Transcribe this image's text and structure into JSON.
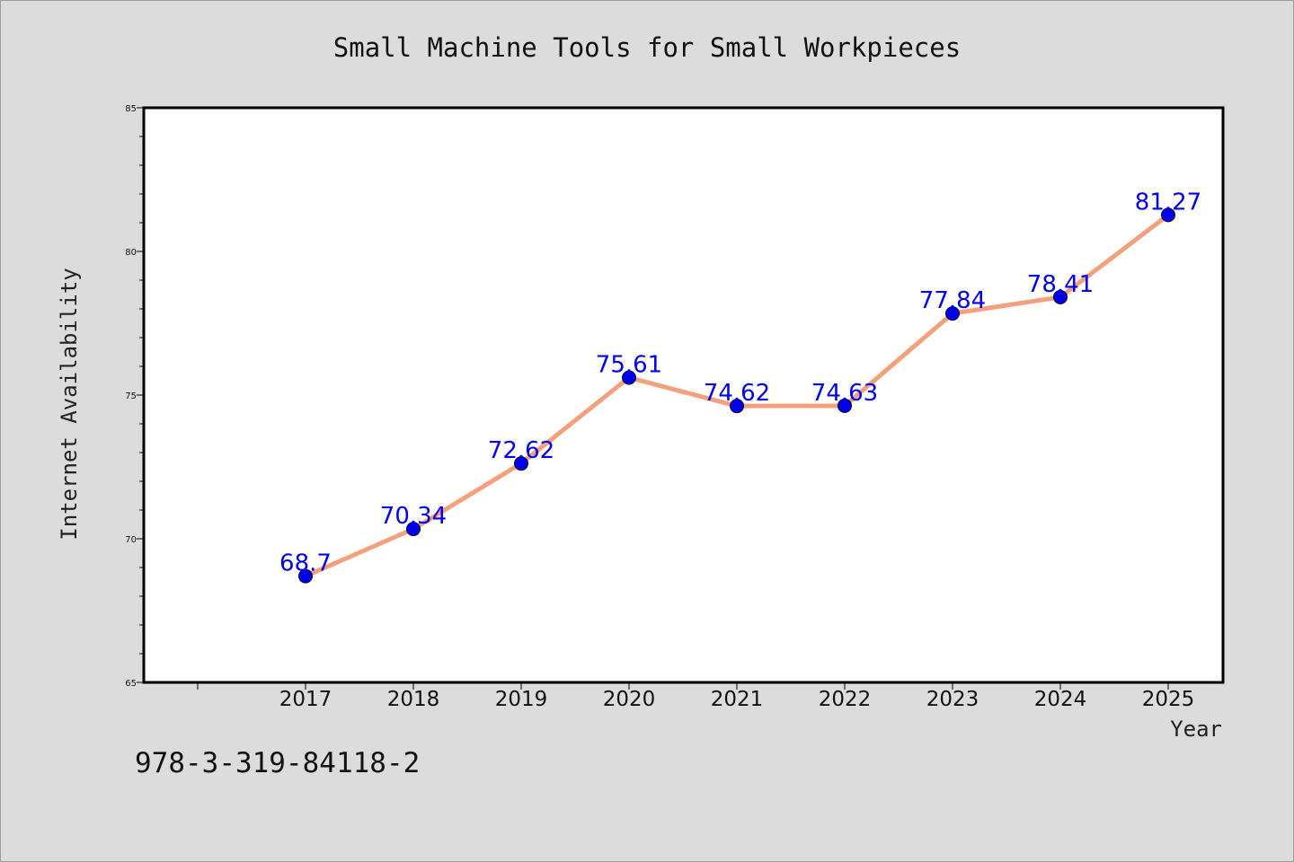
{
  "chart_data": {
    "type": "line",
    "title": "Small Machine Tools for Small Workpieces",
    "xlabel": "Year",
    "ylabel": "Internet Availability",
    "categories": [
      "2017",
      "2018",
      "2019",
      "2020",
      "2021",
      "2022",
      "2023",
      "2024",
      "2025"
    ],
    "series": [
      {
        "values": [
          68.7,
          70.34,
          72.62,
          75.61,
          74.62,
          74.63,
          77.84,
          78.41,
          81.27
        ],
        "labels": [
          "68.7",
          "70.34",
          "72.62",
          "75.61",
          "74.62",
          "74.63",
          "77.84",
          "78.41",
          "81.27"
        ],
        "line_color": "#f4a07c",
        "marker_color": "#0000ee"
      }
    ],
    "ylim": [
      65,
      85
    ],
    "yticks": [
      65,
      70,
      75,
      80,
      85
    ],
    "ytick_labels": [
      "65",
      "70",
      "75",
      "80",
      "85"
    ],
    "grid": false,
    "legend": "none"
  },
  "footnote": "978-3-319-84118-2"
}
